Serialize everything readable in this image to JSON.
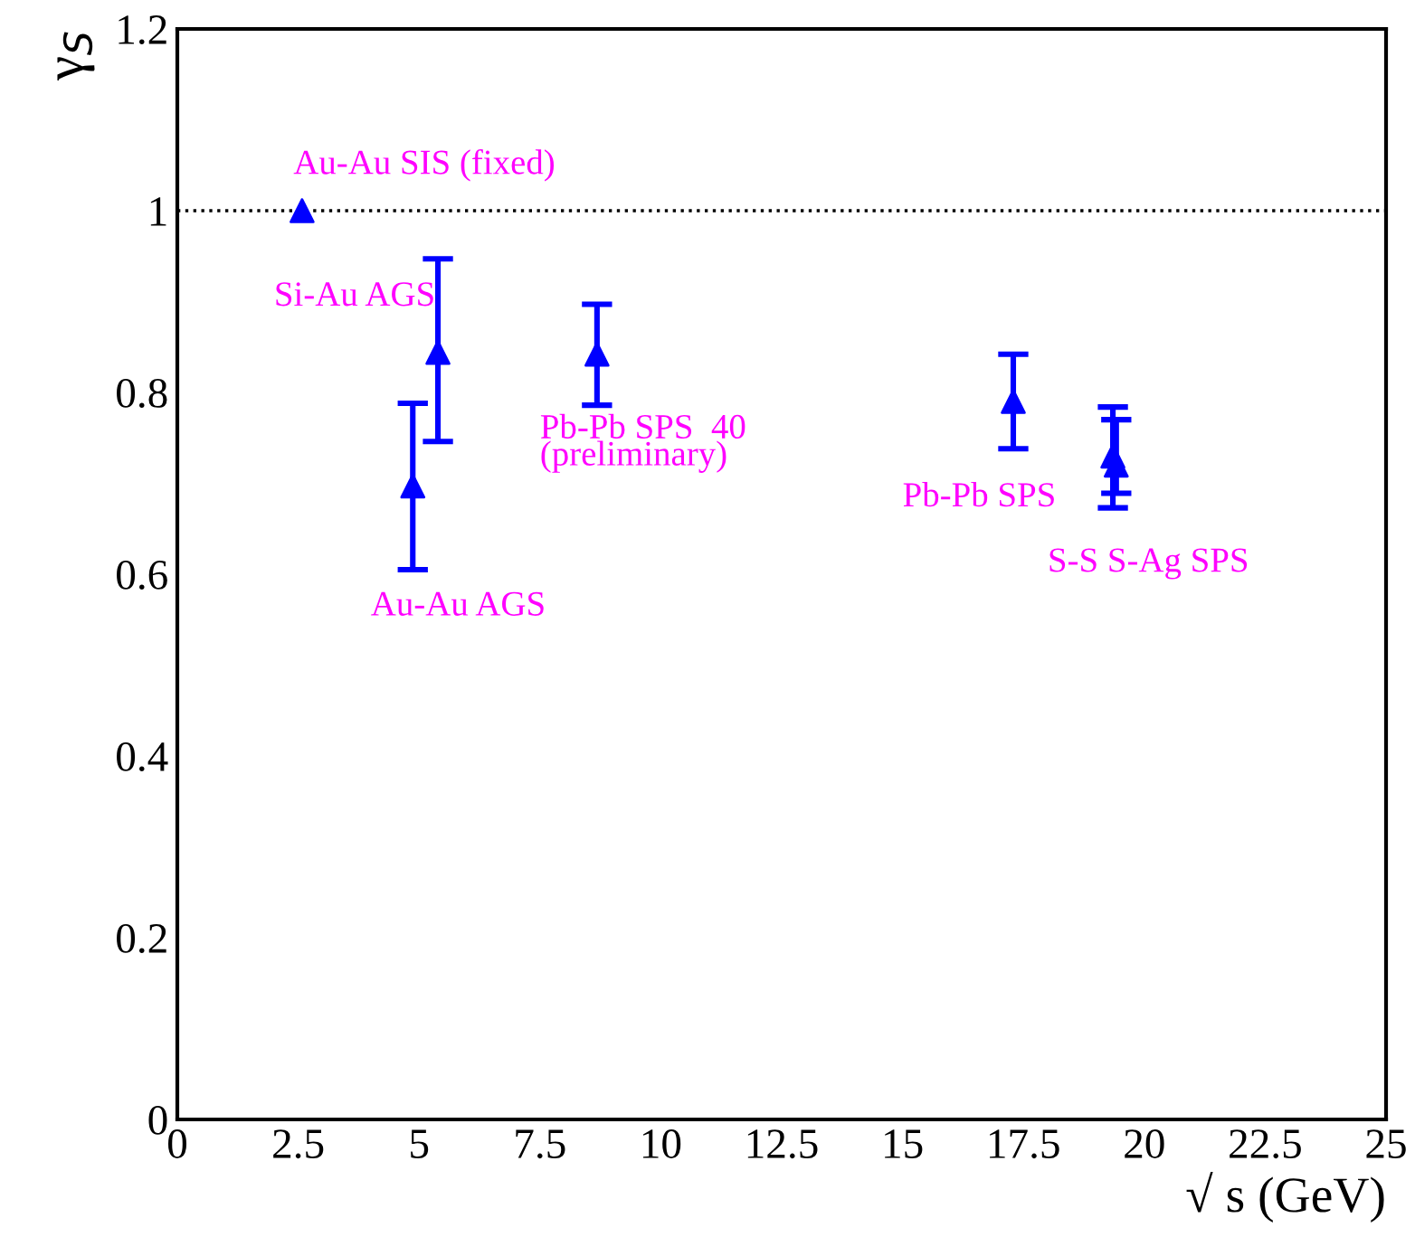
{
  "chart_data": {
    "type": "scatter",
    "xlabel": "√ s (GeV)",
    "ylabel": "γ$_{S}$",
    "x": [
      2.58,
      4.87,
      5.39,
      8.68,
      17.29,
      19.35,
      19.42
    ],
    "values": [
      1.0,
      0.697,
      0.844,
      0.842,
      0.79,
      0.73,
      0.72
    ],
    "errors": [
      null,
      [
        0.605,
        0.788
      ],
      [
        0.746,
        0.947
      ],
      [
        0.786,
        0.897
      ],
      [
        0.738,
        0.842
      ],
      [
        0.673,
        0.784
      ],
      [
        0.689,
        0.77
      ]
    ],
    "color": "#0000ff",
    "marker": "triangle",
    "xlim": [
      0,
      25
    ],
    "xticks": [
      0,
      2.5,
      5,
      7.5,
      10,
      12.5,
      15,
      17.5,
      20,
      22.5,
      25
    ],
    "ylim": [
      0,
      1.2
    ],
    "yticks": [
      0,
      0.2,
      0.4,
      0.6,
      0.8,
      1,
      1.2
    ],
    "grid": false,
    "legend": false,
    "ref_lines": [
      {
        "axis": "y",
        "value": 1,
        "color": "#000000",
        "line_style": "dotted"
      }
    ],
    "annotations": [
      "Au-Au SIS (fixed)",
      "Si-Au AGS",
      "Pb-Pb SPS  40\n(preliminary)",
      "Au-Au AGS",
      "Pb-Pb SPS",
      "S-S S-Ag SPS"
    ]
  }
}
